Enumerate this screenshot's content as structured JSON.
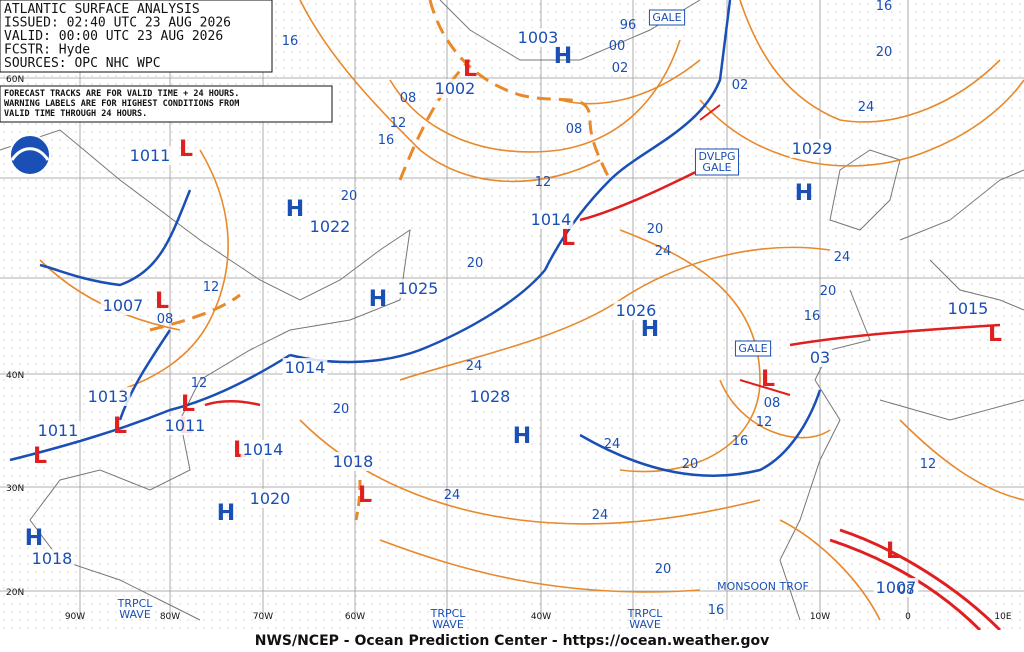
{
  "header": {
    "lines": [
      "ATLANTIC SURFACE ANALYSIS",
      "ISSUED: 02:40 UTC 23 AUG 2026",
      "VALID:  00:00 UTC 23 AUG 2026",
      "FCSTR:  Hyde",
      "SOURCES: OPC NHC WPC"
    ]
  },
  "note": {
    "lines": [
      "FORECAST TRACKS ARE FOR VALID TIME + 24 HOURS.",
      "WARNING LABELS ARE FOR HIGHEST CONDITIONS FROM",
      "VALID TIME THROUGH 24 HOURS."
    ]
  },
  "lat_labels": [
    "60N",
    "40N",
    "30N",
    "20N"
  ],
  "lon_labels": [
    "90W",
    "80W",
    "70W",
    "60W",
    "40W",
    "10W",
    "0",
    "10E"
  ],
  "centers": [
    {
      "symbol": "H",
      "pressure": "1003",
      "color": "#1a4fb5"
    },
    {
      "symbol": "L",
      "pressure": "1002",
      "color": "#e02020"
    },
    {
      "symbol": "L",
      "pressure": "1011",
      "color": "#e02020"
    },
    {
      "symbol": "H",
      "pressure": "1022",
      "color": "#1a4fb5"
    },
    {
      "symbol": "L",
      "pressure": "1014",
      "color": "#e02020"
    },
    {
      "symbol": "H",
      "pressure": "1029",
      "color": "#1a4fb5"
    },
    {
      "symbol": "H",
      "pressure": "1025",
      "color": "#1a4fb5"
    },
    {
      "symbol": "L",
      "pressure": "1007",
      "color": "#e02020"
    },
    {
      "symbol": "H",
      "pressure": "1026",
      "color": "#1a4fb5"
    },
    {
      "symbol": "L",
      "pressure": "1014",
      "color": "#e02020"
    },
    {
      "symbol": "L",
      "pressure": "1013",
      "color": "#e02020"
    },
    {
      "symbol": "L",
      "pressure": "1011",
      "color": "#e02020"
    },
    {
      "symbol": "L",
      "pressure": "1011",
      "color": "#e02020"
    },
    {
      "symbol": "H",
      "pressure": "1028",
      "color": "#1a4fb5"
    },
    {
      "symbol": "L",
      "pressure": "1014",
      "color": "#e02020"
    },
    {
      "symbol": "L",
      "pressure": "1018",
      "color": "#e02020"
    },
    {
      "symbol": "H",
      "pressure": "1020",
      "color": "#1a4fb5"
    },
    {
      "symbol": "H",
      "pressure": "1018",
      "color": "#1a4fb5"
    },
    {
      "symbol": "L",
      "pressure": "1015",
      "color": "#e02020"
    },
    {
      "symbol": "L",
      "pressure": "03",
      "color": "#e02020"
    },
    {
      "symbol": "L",
      "pressure": "1007",
      "color": "#e02020"
    }
  ],
  "isobar_labels": [
    "16",
    "08",
    "12",
    "16",
    "20",
    "12",
    "08",
    "02",
    "02",
    "96",
    "00",
    "16",
    "20",
    "24",
    "20",
    "24",
    "20",
    "16",
    "24",
    "20",
    "24",
    "20",
    "12",
    "08",
    "12",
    "20",
    "24",
    "16",
    "12",
    "08",
    "12",
    "24",
    "24",
    "20",
    "16",
    "08"
  ],
  "boxed_labels": [
    "GALE",
    "DVLPG GALE",
    "GALE",
    "MONSOON TROF",
    "TRPCL WAVE",
    "TRPCL WAVE",
    "TRPCL WAVE"
  ],
  "footer": "NWS/NCEP - Ocean Prediction Center - https://ocean.weather.gov"
}
